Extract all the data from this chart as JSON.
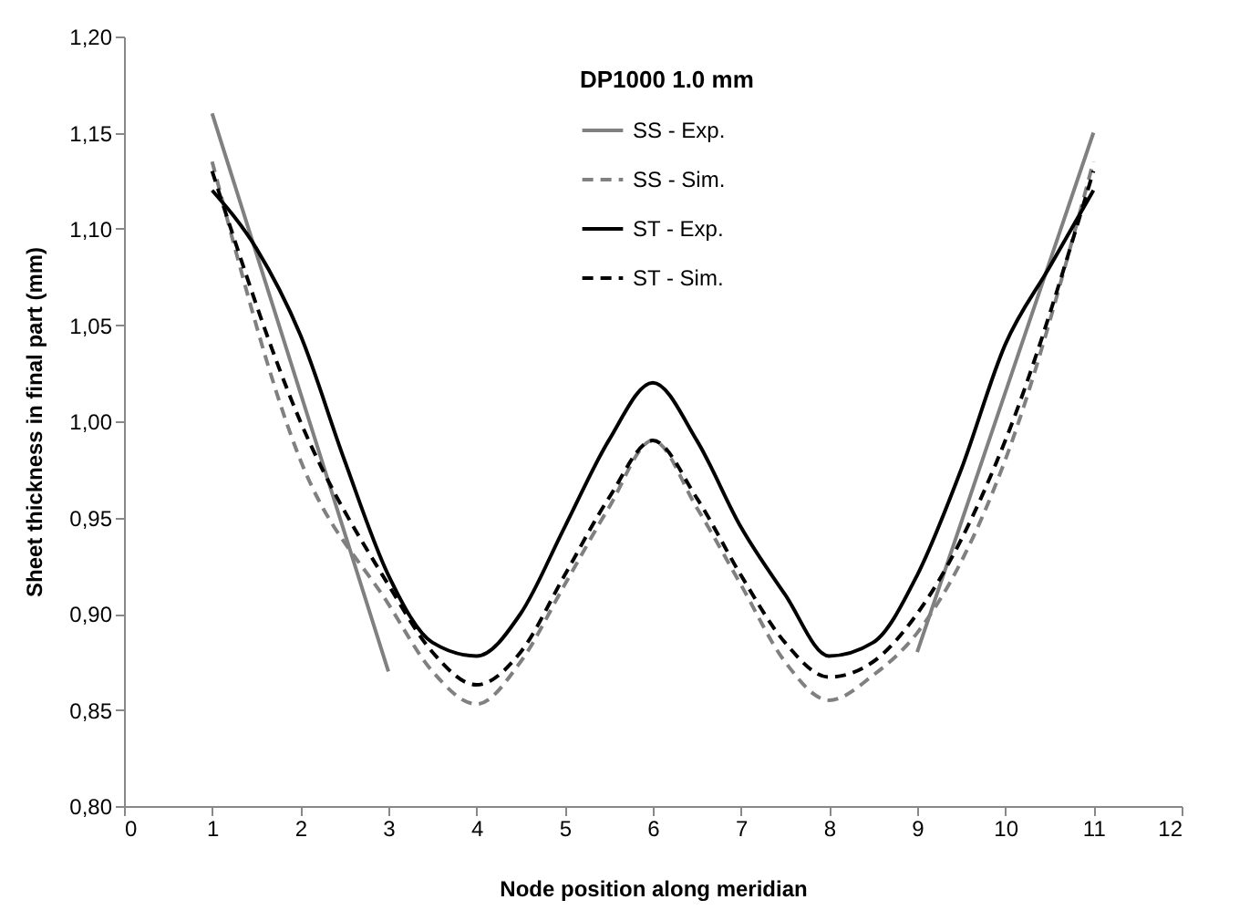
{
  "chart_data": {
    "type": "line",
    "xlabel": "Node position along meridian",
    "ylabel": "Sheet thickness in final part (mm)",
    "legend_title": "DP1000 1.0 mm",
    "legend": "top",
    "grid": false,
    "marker": "none",
    "xlim": [
      0,
      12
    ],
    "xticks": [
      0,
      1,
      2,
      3,
      4,
      5,
      6,
      7,
      8,
      9,
      10,
      11,
      12
    ],
    "ylim": [
      0.8,
      1.2
    ],
    "yticks": [
      {
        "value": 0.8,
        "label": "0,80"
      },
      {
        "value": 0.85,
        "label": "0,85"
      },
      {
        "value": 0.9,
        "label": "0,90"
      },
      {
        "value": 0.95,
        "label": "0,95"
      },
      {
        "value": 1.0,
        "label": "1,00"
      },
      {
        "value": 1.05,
        "label": "1,05"
      },
      {
        "value": 1.1,
        "label": "1,10"
      },
      {
        "value": 1.15,
        "label": "1,15"
      },
      {
        "value": 1.2,
        "label": "1,20"
      }
    ],
    "series": [
      {
        "name": "SS - Exp.",
        "color": "#808080",
        "line_style": "solid",
        "x": [
          1,
          3,
          6,
          9,
          11
        ],
        "values": [
          1.16,
          0.87,
          null,
          0.88,
          1.15
        ]
      },
      {
        "name": "SS - Sim.",
        "color": "#808080",
        "line_style": "dashed",
        "x": [
          1,
          2,
          3,
          3.5,
          4,
          4.5,
          5,
          5.5,
          6,
          6.5,
          7,
          7.5,
          8,
          8.5,
          9,
          10,
          11
        ],
        "values": [
          1.135,
          0.98,
          0.905,
          0.87,
          0.853,
          0.875,
          0.915,
          0.955,
          0.99,
          0.955,
          0.915,
          0.875,
          0.855,
          0.868,
          0.89,
          0.98,
          1.135
        ]
      },
      {
        "name": "ST - Exp.",
        "color": "#000000",
        "line_style": "solid",
        "x": [
          1,
          1.5,
          2,
          2.5,
          3,
          3.5,
          4,
          4.5,
          5,
          5.5,
          6,
          6.5,
          7,
          7.5,
          8,
          8.5,
          9,
          9.5,
          10,
          10.5,
          11
        ],
        "values": [
          1.12,
          1.09,
          1.045,
          0.98,
          0.92,
          0.885,
          0.878,
          0.9,
          0.945,
          0.99,
          1.02,
          0.99,
          0.945,
          0.91,
          0.878,
          0.885,
          0.92,
          0.975,
          1.04,
          1.08,
          1.12
        ]
      },
      {
        "name": "ST - Sim.",
        "color": "#000000",
        "line_style": "dashed",
        "x": [
          1,
          2,
          3,
          3.5,
          4,
          4.5,
          5,
          5.5,
          6,
          6.5,
          7,
          7.5,
          8,
          8.5,
          9,
          10,
          11
        ],
        "values": [
          1.13,
          1.0,
          0.915,
          0.88,
          0.863,
          0.88,
          0.92,
          0.96,
          0.99,
          0.96,
          0.92,
          0.885,
          0.867,
          0.875,
          0.9,
          0.99,
          1.13
        ]
      }
    ]
  }
}
